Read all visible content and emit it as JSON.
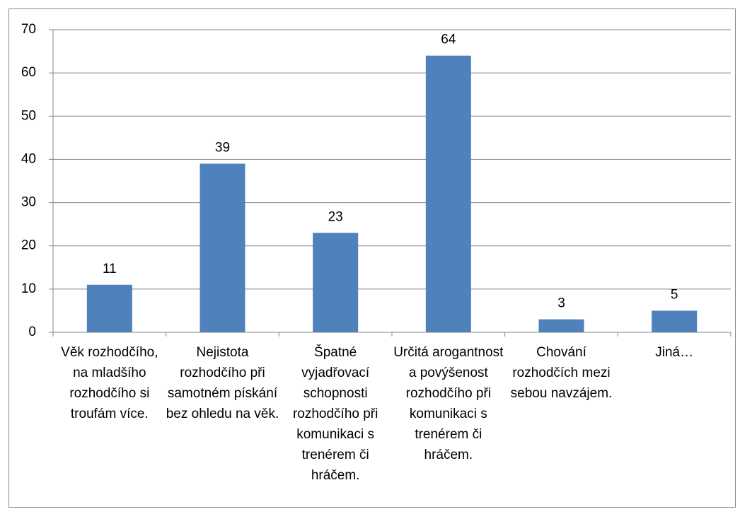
{
  "chart_data": {
    "type": "bar",
    "categories": [
      "Věk rozhodčího, na mladšího rozhodčího si troufám více.",
      "Nejistota rozhodčího při samotném pískání bez ohledu na věk.",
      "Špatné vyjadřovací schopnosti rozhodčího při komunikaci s trenérem či hráčem.",
      "Určitá arogantnost a povýšenost rozhodčího při komunikaci s trenérem či hráčem.",
      "Chování rozhodčích mezi sebou navzájem.",
      "Jiná…"
    ],
    "values": [
      11,
      39,
      23,
      64,
      3,
      5
    ],
    "color": "#4f81bd",
    "ylim": [
      0,
      70
    ],
    "yticks": [
      0,
      10,
      20,
      30,
      40,
      50,
      60,
      70
    ],
    "grid": true
  }
}
